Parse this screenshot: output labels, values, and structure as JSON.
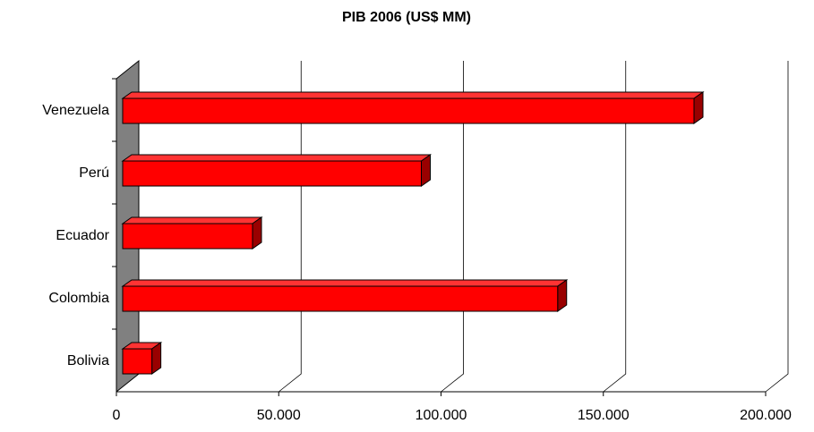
{
  "chart_data": {
    "type": "bar3d",
    "title": "PIB 2006 (US$ MM)",
    "categories": [
      "Venezuela",
      "Perú",
      "Ecuador",
      "Colombia",
      "Bolivia"
    ],
    "values": [
      176000,
      92000,
      40000,
      134000,
      9000
    ],
    "color": "#ff0000",
    "xlim": [
      0,
      200000
    ],
    "xticks": [
      0,
      {
        "value": 50000,
        "label": "50.000"
      },
      {
        "value": 100000,
        "label": "100.000"
      },
      {
        "value": 150000,
        "label": "150.000"
      },
      {
        "value": 200000,
        "label": "200.000"
      }
    ],
    "grid": true
  }
}
